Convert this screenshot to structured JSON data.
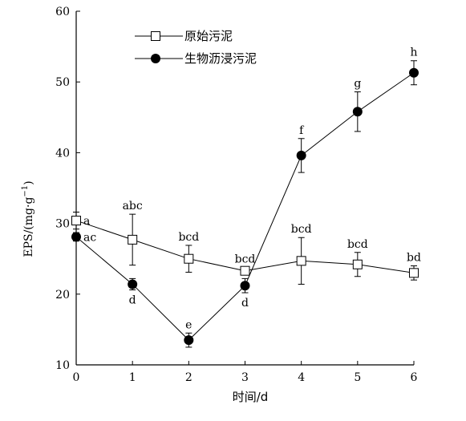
{
  "chart_data": {
    "type": "line",
    "title": "",
    "xlabel": "时间/d",
    "ylabel_main": "EPS/(mg·g",
    "ylabel_sup": "−1",
    "ylabel_close": ")",
    "x": [
      0,
      1,
      2,
      3,
      4,
      5,
      6
    ],
    "xlim": [
      0,
      6
    ],
    "ylim": [
      10,
      60
    ],
    "x_ticks": [
      "0",
      "1",
      "2",
      "3",
      "4",
      "5",
      "6"
    ],
    "y_ticks": [
      "10",
      "20",
      "30",
      "40",
      "50",
      "60"
    ],
    "grid": false,
    "legend_position": "top-left",
    "series": [
      {
        "name": "原始污泥",
        "marker": "open-square",
        "color": "#000000",
        "values": [
          30.4,
          27.7,
          25.0,
          23.3,
          24.7,
          24.2,
          23.0
        ],
        "errors": [
          1.2,
          3.6,
          1.9,
          0.5,
          3.3,
          1.7,
          1.0
        ],
        "labels": [
          "a",
          "abc",
          "bcd",
          "bcd",
          "bcd",
          "bcd",
          "bd"
        ],
        "label_side": [
          "right",
          "above",
          "above",
          "above",
          "above",
          "above",
          "above"
        ]
      },
      {
        "name": "生物沥浸污泥",
        "marker": "filled-circle",
        "color": "#000000",
        "values": [
          28.1,
          21.4,
          13.5,
          21.2,
          39.6,
          45.8,
          51.3
        ],
        "errors": [
          0.6,
          0.8,
          1.0,
          1.0,
          2.4,
          2.8,
          1.7
        ],
        "labels": [
          "ac",
          "d",
          "e",
          "d",
          "f",
          "g",
          "h"
        ],
        "label_side": [
          "right",
          "below",
          "above",
          "below",
          "above",
          "above",
          "above"
        ]
      }
    ]
  }
}
